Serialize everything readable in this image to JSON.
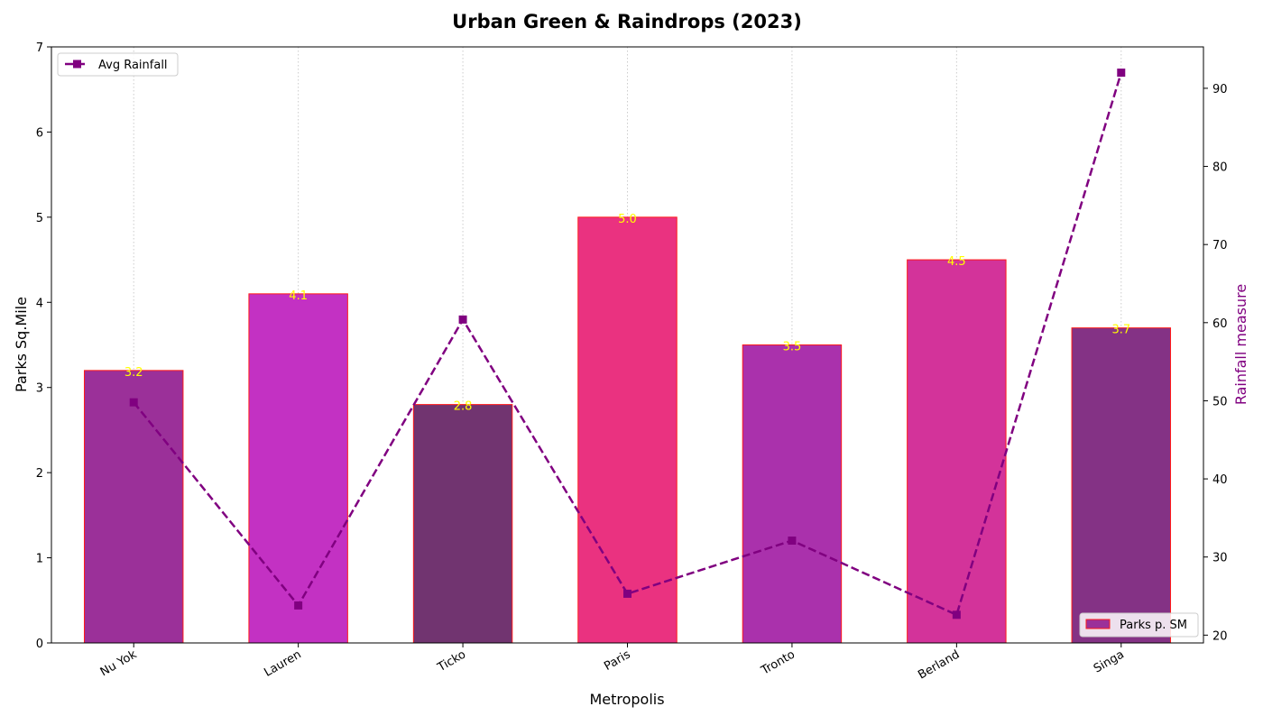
{
  "chart_data": {
    "type": "bar",
    "title": "Urban Green & Raindrops (2023)",
    "xlabel": "Metropolis",
    "ylabel": "Parks Sq.Mile",
    "y2label": "Rainfall measure",
    "categories": [
      "Nu Yok",
      "Lauren",
      "Ticko",
      "Paris",
      "Tronto",
      "Berland",
      "Singa"
    ],
    "ylim": [
      0,
      7
    ],
    "y2lim": [
      19,
      95.3
    ],
    "yticks": [
      0,
      1,
      2,
      3,
      4,
      5,
      6,
      7
    ],
    "y2ticks": [
      20,
      30,
      40,
      50,
      60,
      70,
      80,
      90
    ],
    "grid": "x-only-dotted",
    "series": [
      {
        "name": "Parks p. SM",
        "kind": "bar",
        "axis": "left",
        "values": [
          3.2,
          4.1,
          2.8,
          5.0,
          3.5,
          4.5,
          3.7
        ],
        "value_labels": [
          "3.2",
          "4.1",
          "2.8",
          "5.0",
          "3.5",
          "4.5",
          "3.7"
        ],
        "colors": [
          "#9b3099",
          "#c331c3",
          "#713470",
          "#ea3280",
          "#aa31ac",
          "#d3339a",
          "#843285"
        ],
        "edge_color": "#ff1a1a",
        "label_color": "#ffff00",
        "legend_position": "lower-right"
      },
      {
        "name": "Avg Rainfall",
        "kind": "line",
        "axis": "right",
        "values": [
          49.8,
          23.8,
          60.4,
          25.3,
          32.1,
          22.6,
          92.0
        ],
        "color": "#800080",
        "line_style": "dashed",
        "marker": "square",
        "legend_position": "upper-left"
      }
    ]
  }
}
